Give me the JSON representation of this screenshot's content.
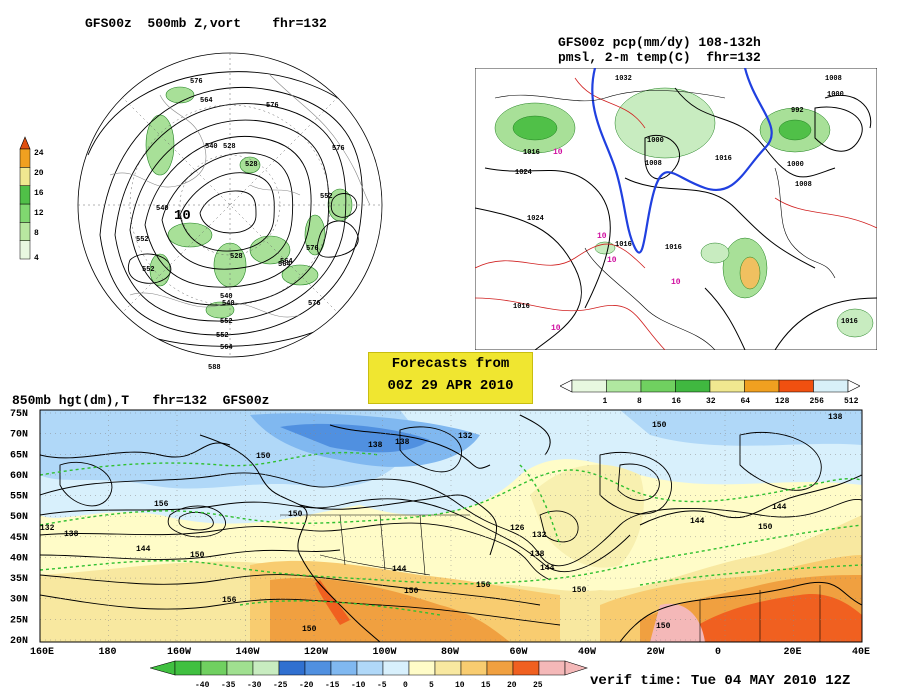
{
  "panels": {
    "vort": {
      "title": "GFS00z  500mb Z,vort    fhr=132",
      "colorbar_labels": [
        "24",
        "20",
        "16",
        "12",
        "8",
        "4"
      ],
      "colorbar_colors": [
        "#e8f8e0",
        "#b8e8a0",
        "#80d870",
        "#50c048",
        "#f0e890",
        "#f0a020"
      ],
      "contour_labels": [
        "576",
        "564",
        "576",
        "540",
        "528",
        "528",
        "540",
        "552",
        "552",
        "564",
        "528",
        "540",
        "552",
        "576",
        "576",
        "552",
        "564",
        "576",
        "540",
        "552",
        "564",
        "588",
        "10"
      ]
    },
    "precip": {
      "title_line1": "GFS00z pcp(mm/dy) 108-132h",
      "title_line2": "pmsl, 2-m temp(C)  fhr=132",
      "isobar_labels": [
        "1008",
        "1000",
        "1016",
        "1024",
        "1024",
        "1000",
        "1008",
        "1016",
        "1000",
        "1008",
        "1016",
        "1016",
        "1016",
        "1016",
        "992",
        "1032"
      ],
      "temp_labels": [
        "10",
        "10",
        "10",
        "10",
        "10"
      ],
      "colorbar_labels": [
        "1",
        "8",
        "16",
        "32",
        "64",
        "128",
        "256",
        "512"
      ],
      "colorbar_colors": [
        "#e8f8e0",
        "#b0e8a0",
        "#70d060",
        "#40b840",
        "#f0e890",
        "#f0a020",
        "#f05010",
        "#d8f0f8"
      ]
    },
    "h850": {
      "title": "850mb hgt(dm),T   fhr=132  GFS00z",
      "lat_labels": [
        "75N",
        "70N",
        "65N",
        "60N",
        "55N",
        "50N",
        "45N",
        "40N",
        "35N",
        "30N",
        "25N",
        "20N"
      ],
      "lon_labels": [
        "160E",
        "180",
        "160W",
        "140W",
        "120W",
        "100W",
        "80W",
        "60W",
        "40W",
        "20W",
        "0",
        "20E",
        "40E"
      ],
      "contour_labels": [
        "138",
        "132",
        "150",
        "138",
        "150",
        "144",
        "156",
        "150",
        "138",
        "132",
        "126",
        "138",
        "144",
        "144",
        "156",
        "150",
        "150",
        "156",
        "150",
        "144",
        "150",
        "144",
        "150",
        "138",
        "132",
        "150"
      ],
      "colorbar_labels": [
        "-40",
        "-35",
        "-30",
        "-25",
        "-20",
        "-15",
        "-10",
        "-5",
        "0",
        "5",
        "10",
        "15",
        "20",
        "25"
      ],
      "colorbar_colors": [
        "#40c040",
        "#70d060",
        "#a0e090",
        "#c8ecc0",
        "#3070d0",
        "#5090e0",
        "#80b8f0",
        "#b0d8f8",
        "#d8f0fc",
        "#fffcc8",
        "#f8e8a0",
        "#f8cc70",
        "#f0a040",
        "#f06020",
        "#f4b8b8"
      ]
    }
  },
  "banner": {
    "line1": "Forecasts from",
    "line2": "00Z 29 APR 2010"
  },
  "verif_time": "verif time: Tue 04 MAY 2010 12Z"
}
